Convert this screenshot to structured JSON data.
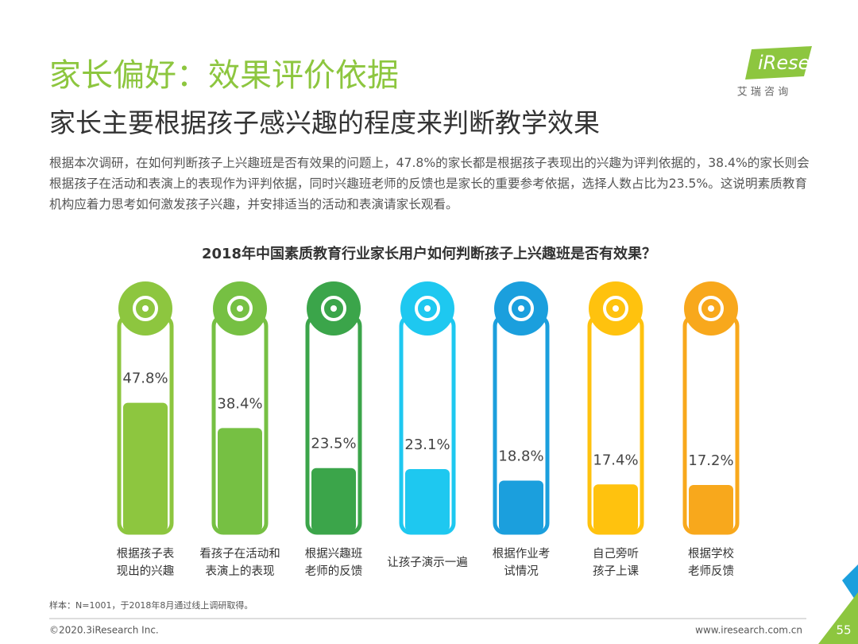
{
  "header": {
    "title": "家长偏好：效果评价依据",
    "subtitle": "家长主要根据孩子感兴趣的程度来判断教学效果",
    "body": "根据本次调研，在如何判断孩子上兴趣班是否有效果的问题上，47.8%的家长都是根据孩子表现出的兴趣为评判依据的，38.4%的家长则会根据孩子在活动和表演上的表现作为评判依据，同时兴趣班老师的反馈也是家长的重要参考依据，选择人数占比为23.5%。这说明素质教育机构应着力思考如何激发孩子兴趣，并安排适当的活动和表演请家长观看。"
  },
  "logo": {
    "name": "iResearch",
    "sub": "艾 瑞 咨 询"
  },
  "chart_data": {
    "type": "bar",
    "title": "2018年中国素质教育行业家长用户如何判断孩子上兴趣班是否有效果？",
    "categories": [
      "根据孩子表\n现出的兴趣",
      "看孩子在活动和\n表演上的表现",
      "根据兴趣班\n老师的反馈",
      "让孩子演示一遍",
      "根据作业考\n试情况",
      "自己旁听\n孩子上课",
      "根据学校\n老师反馈"
    ],
    "values": [
      47.8,
      38.4,
      23.5,
      23.1,
      18.8,
      17.4,
      17.2
    ],
    "value_labels": [
      "47.8%",
      "38.4%",
      "23.5%",
      "23.1%",
      "18.8%",
      "17.4%",
      "17.2%"
    ],
    "colors": [
      "#8dc63f",
      "#76c043",
      "#3ba54a",
      "#1ec8f0",
      "#1b9fdd",
      "#ffc20e",
      "#f8a81c"
    ],
    "ylim": [
      0,
      80
    ]
  },
  "footer": {
    "note": "样本：N=1001，于2018年8月通过线上调研取得。",
    "copyright": "©2020.3iResearch Inc.",
    "url": "www.iresearch.com.cn",
    "page": "55"
  }
}
